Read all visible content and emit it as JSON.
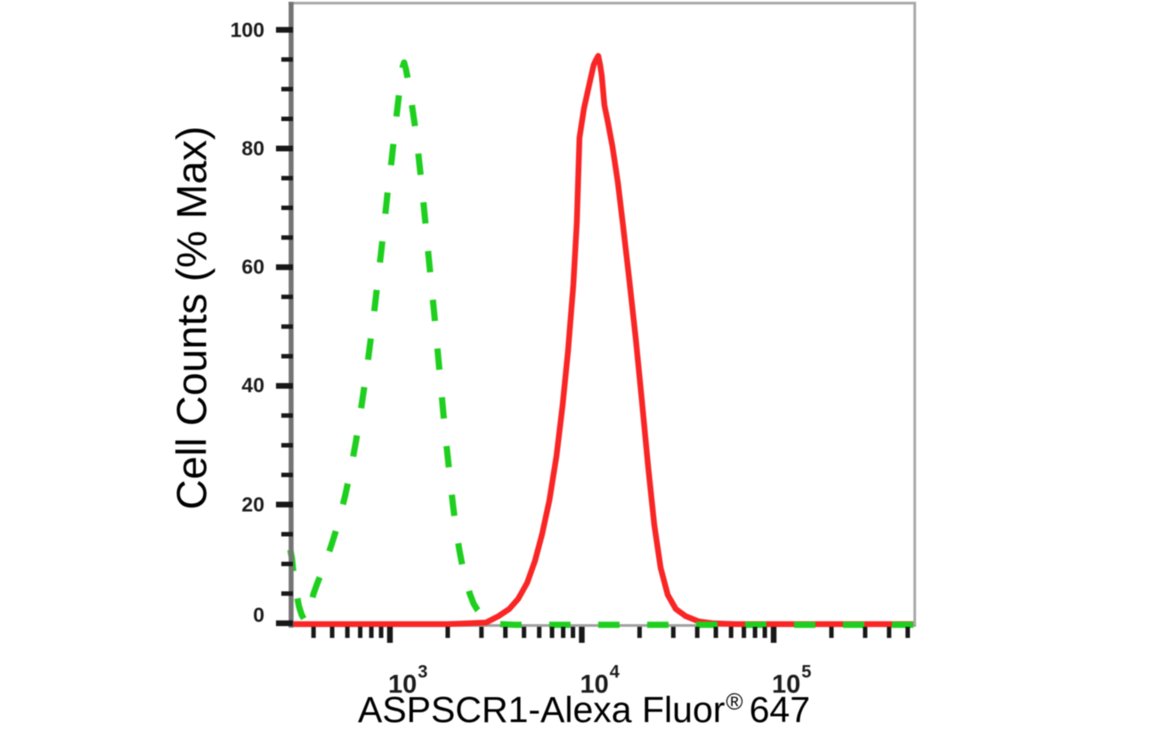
{
  "chart_data": {
    "type": "line",
    "title": "",
    "xlabel": "ASPSCR1-Alexa Fluor®647",
    "xlabel_parts": {
      "main": "ASPSCR1-Alexa Fluor",
      "sup": "®",
      "tail": "647"
    },
    "ylabel": "Cell Counts (% Max)",
    "x_scale": "log10",
    "x_range_log10": [
      2.48,
      5.728
    ],
    "ylim": [
      0,
      105
    ],
    "grid": false,
    "legend": "none",
    "y_ticks_major": [
      0,
      20,
      40,
      60,
      80,
      100
    ],
    "y_tick_minor_step": 5,
    "x_ticks_major_log10": [
      3,
      4,
      5
    ],
    "x_tick_labels": [
      {
        "base": "10",
        "exp": "3"
      },
      {
        "base": "10",
        "exp": "4"
      },
      {
        "base": "10",
        "exp": "5"
      }
    ],
    "series": [
      {
        "name": "red-solid",
        "color": "#f92626",
        "style": "solid",
        "points": [
          [
            2.48,
            -0.15
          ],
          [
            3.3,
            -0.15
          ],
          [
            3.5,
            0.1
          ],
          [
            3.566,
            1.2
          ],
          [
            3.622,
            2.4
          ],
          [
            3.668,
            4.1
          ],
          [
            3.715,
            6.8
          ],
          [
            3.756,
            10.5
          ],
          [
            3.793,
            15.0
          ],
          [
            3.831,
            20.7
          ],
          [
            3.868,
            28.2
          ],
          [
            3.9,
            36.8
          ],
          [
            3.928,
            45.8
          ],
          [
            3.956,
            57.0
          ],
          [
            3.974,
            67.5
          ],
          [
            3.988,
            81.8
          ],
          [
            4.011,
            86.7
          ],
          [
            4.039,
            90.8
          ],
          [
            4.062,
            94.1
          ],
          [
            4.075,
            95.0
          ],
          [
            4.086,
            95.6
          ],
          [
            4.096,
            94.0
          ],
          [
            4.104,
            92.3
          ],
          [
            4.118,
            87.3
          ],
          [
            4.137,
            84.3
          ],
          [
            4.16,
            80.3
          ],
          [
            4.188,
            74.3
          ],
          [
            4.216,
            66.8
          ],
          [
            4.248,
            57.8
          ],
          [
            4.281,
            48.0
          ],
          [
            4.313,
            37.5
          ],
          [
            4.346,
            26.3
          ],
          [
            4.378,
            16.5
          ],
          [
            4.411,
            9.3
          ],
          [
            4.448,
            4.8
          ],
          [
            4.49,
            2.4
          ],
          [
            4.541,
            1.2
          ],
          [
            4.61,
            0.3
          ],
          [
            4.68,
            0.0
          ],
          [
            4.8,
            -0.15
          ],
          [
            5.728,
            -0.15
          ]
        ]
      },
      {
        "name": "green-dashed",
        "color": "#1fcf1f",
        "style": "dashed",
        "points": [
          [
            2.48,
            12.5
          ],
          [
            2.489,
            11.0
          ],
          [
            2.5,
            7.5
          ],
          [
            2.512,
            5.2
          ],
          [
            2.526,
            2.8
          ],
          [
            2.54,
            1.4
          ],
          [
            2.556,
            0.5
          ],
          [
            2.573,
            0.7
          ],
          [
            2.588,
            2.9
          ],
          [
            2.601,
            4.9
          ],
          [
            2.62,
            6.6
          ],
          [
            2.638,
            8.1
          ],
          [
            2.657,
            9.7
          ],
          [
            2.675,
            11.3
          ],
          [
            2.694,
            13.1
          ],
          [
            2.712,
            14.9
          ],
          [
            2.731,
            17.0
          ],
          [
            2.749,
            19.2
          ],
          [
            2.768,
            21.7
          ],
          [
            2.786,
            24.5
          ],
          [
            2.805,
            27.5
          ],
          [
            2.824,
            30.9
          ],
          [
            2.842,
            34.6
          ],
          [
            2.861,
            38.6
          ],
          [
            2.88,
            42.9
          ],
          [
            2.898,
            47.4
          ],
          [
            2.917,
            52.2
          ],
          [
            2.935,
            57.3
          ],
          [
            2.954,
            62.5
          ],
          [
            2.972,
            67.8
          ],
          [
            2.99,
            73.2
          ],
          [
            3.009,
            78.0
          ],
          [
            3.023,
            82.4
          ],
          [
            3.037,
            86.3
          ],
          [
            3.049,
            89.6
          ],
          [
            3.06,
            92.3
          ],
          [
            3.067,
            93.8
          ],
          [
            3.074,
            94.5
          ],
          [
            3.083,
            93.4
          ],
          [
            3.093,
            91.8
          ],
          [
            3.105,
            89.6
          ],
          [
            3.116,
            87.0
          ],
          [
            3.13,
            83.9
          ],
          [
            3.144,
            80.3
          ],
          [
            3.158,
            76.2
          ],
          [
            3.172,
            71.7
          ],
          [
            3.186,
            67.1
          ],
          [
            3.2,
            62.3
          ],
          [
            3.216,
            57.1
          ],
          [
            3.232,
            51.8
          ],
          [
            3.248,
            46.2
          ],
          [
            3.264,
            40.5
          ],
          [
            3.28,
            34.9
          ],
          [
            3.297,
            29.3
          ],
          [
            3.313,
            24.4
          ],
          [
            3.329,
            19.8
          ],
          [
            3.345,
            15.8
          ],
          [
            3.362,
            12.3
          ],
          [
            3.38,
            9.3
          ],
          [
            3.399,
            6.8
          ],
          [
            3.417,
            4.9
          ],
          [
            3.436,
            3.3
          ],
          [
            3.455,
            2.3
          ],
          [
            3.473,
            1.6
          ],
          [
            3.492,
            0.9
          ],
          [
            3.51,
            0.4
          ],
          [
            3.55,
            -0.1
          ],
          [
            3.65,
            -0.25
          ],
          [
            5.728,
            -0.25
          ]
        ]
      }
    ]
  }
}
